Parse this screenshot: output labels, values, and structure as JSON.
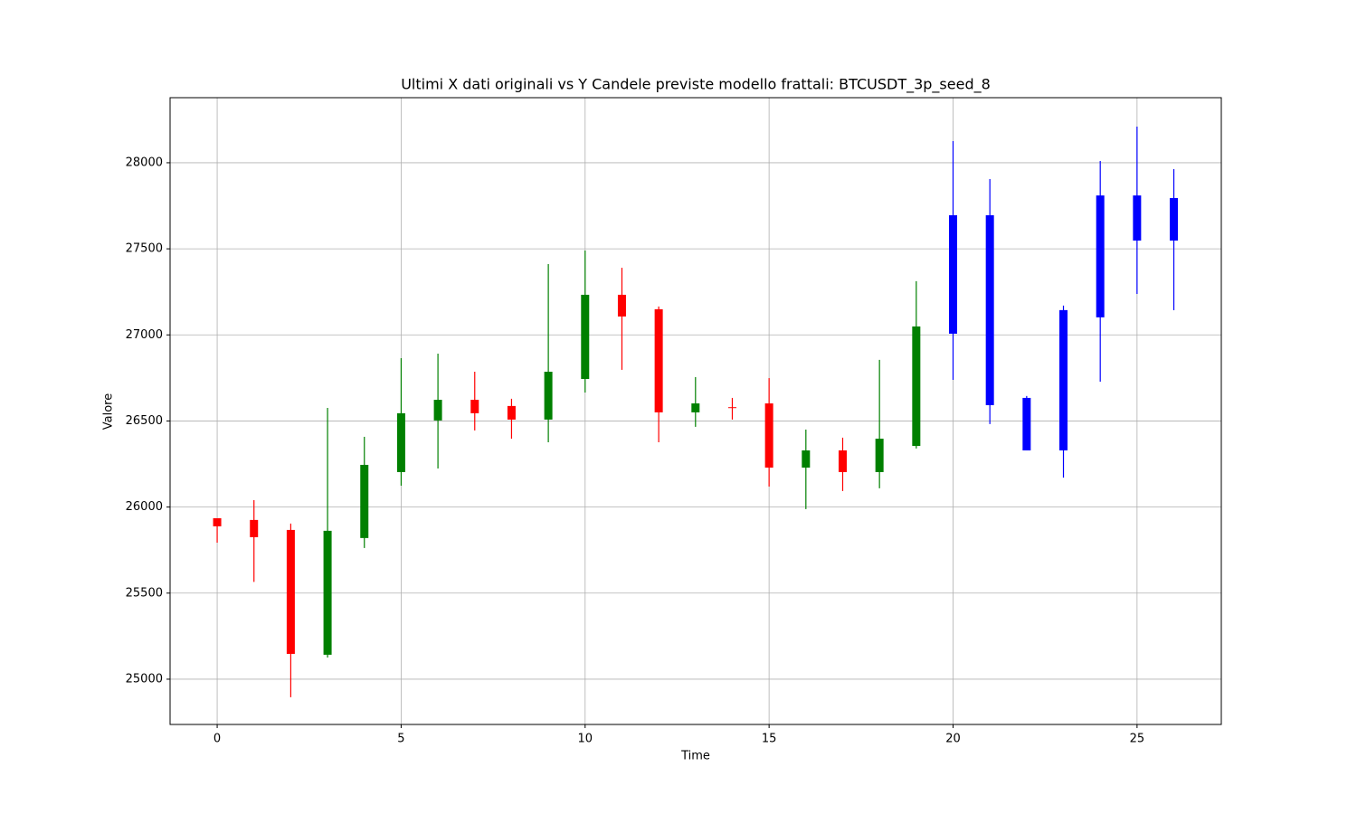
{
  "chart_data": {
    "type": "candlestick",
    "title": "Ultimi X dati originali vs Y Candele previste modello frattali: BTCUSDT_3p_seed_8",
    "x_label": "Time",
    "y_label": "Valore",
    "xlim": [
      -1.28,
      27.29
    ],
    "ylim": [
      24737,
      28378
    ],
    "xticks": [
      0,
      5,
      10,
      15,
      20,
      25
    ],
    "yticks": [
      25000,
      25500,
      26000,
      26500,
      27000,
      27500,
      28000
    ],
    "grid": true,
    "series": [
      {
        "up_color": "green",
        "down_color": "red",
        "x": [
          0,
          1,
          2,
          3,
          4,
          5,
          6,
          7,
          8,
          9,
          10,
          11,
          12,
          13,
          14,
          15,
          16,
          17,
          18,
          19
        ],
        "open": [
          25935,
          25925,
          25867,
          25142,
          25820,
          26203,
          26503,
          26623,
          26587,
          26508,
          26744,
          27233,
          27149,
          26550,
          26580,
          26602,
          26229,
          26329,
          26203,
          26355
        ],
        "high": [
          25935,
          26040,
          25904,
          26576,
          26408,
          26865,
          26891,
          26786,
          26629,
          27411,
          27490,
          27390,
          27165,
          26755,
          26634,
          26749,
          26450,
          26403,
          26855,
          27312
        ],
        "low": [
          25793,
          25565,
          24895,
          25126,
          25762,
          26124,
          26224,
          26445,
          26397,
          26376,
          26665,
          26797,
          26376,
          26466,
          26508,
          26119,
          25988,
          26093,
          26109,
          26340
        ],
        "close": [
          25888,
          25825,
          25147,
          25862,
          26245,
          26545,
          26623,
          26545,
          26508,
          26786,
          27233,
          27107,
          26550,
          26602,
          26575,
          26229,
          26329,
          26203,
          26397,
          27049
        ]
      },
      {
        "color": "blue",
        "x": [
          20,
          21,
          22,
          23,
          24,
          25,
          26
        ],
        "open": [
          27007,
          27695,
          26634,
          26329,
          27102,
          27810,
          27795
        ],
        "high": [
          28126,
          27905,
          26645,
          27170,
          28010,
          28210,
          27963
        ],
        "low": [
          26739,
          26482,
          26329,
          26171,
          26728,
          27238,
          27143
        ],
        "close": [
          27695,
          26592,
          26329,
          27144,
          27810,
          27548,
          27548
        ]
      }
    ]
  }
}
